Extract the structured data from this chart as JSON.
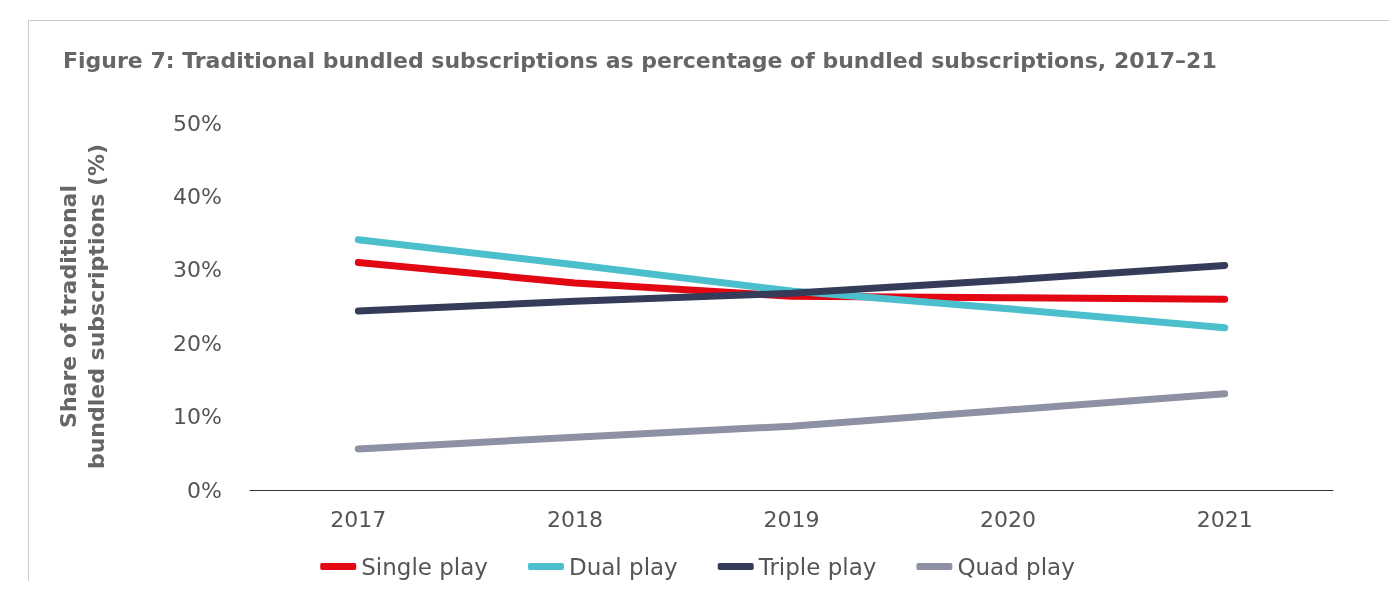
{
  "chart_data": {
    "type": "line",
    "title": "Figure 7: Traditional bundled subscriptions as percentage of bundled subscriptions, 2017–21",
    "ylabel": "Share of traditional bundled subscriptions (%)",
    "categories": [
      "2017",
      "2018",
      "2019",
      "2020",
      "2021"
    ],
    "series": [
      {
        "name": "Single play",
        "color": "#e30613",
        "values": [
          31.0,
          28.2,
          26.4,
          26.2,
          26.0
        ]
      },
      {
        "name": "Dual play",
        "color": "#4bbfcc",
        "values": [
          34.1,
          30.7,
          27.1,
          24.7,
          22.1
        ]
      },
      {
        "name": "Triple play",
        "color": "#343c59",
        "values": [
          24.4,
          25.7,
          26.8,
          28.6,
          30.6
        ]
      },
      {
        "name": "Quad play",
        "color": "#8e90a3",
        "values": [
          5.6,
          7.2,
          8.7,
          10.9,
          13.1
        ]
      }
    ],
    "ylim": [
      0,
      50
    ],
    "yticks": [
      {
        "value": 0,
        "label": "0%"
      },
      {
        "value": 10,
        "label": "10%"
      },
      {
        "value": 20,
        "label": "20%"
      },
      {
        "value": 30,
        "label": "30%"
      },
      {
        "value": 40,
        "label": "40%"
      },
      {
        "value": 50,
        "label": "50%"
      }
    ],
    "grid": false,
    "legend": "bottom",
    "marker": "none",
    "line_style": "solid"
  }
}
